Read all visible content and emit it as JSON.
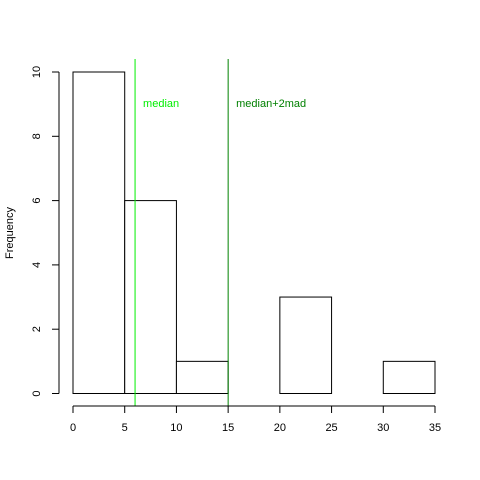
{
  "chart_data": {
    "type": "bar",
    "title": "",
    "xlabel": "",
    "ylabel": "Frequency",
    "bins": [
      {
        "from": 0,
        "to": 5,
        "count": 10
      },
      {
        "from": 5,
        "to": 10,
        "count": 6
      },
      {
        "from": 10,
        "to": 15,
        "count": 1
      },
      {
        "from": 15,
        "to": 20,
        "count": 0
      },
      {
        "from": 20,
        "to": 25,
        "count": 3
      },
      {
        "from": 25,
        "to": 30,
        "count": 0
      },
      {
        "from": 30,
        "to": 35,
        "count": 1
      }
    ],
    "xlim": [
      0,
      35
    ],
    "ylim": [
      0,
      10
    ],
    "x_ticks": [
      "0",
      "5",
      "10",
      "15",
      "20",
      "25",
      "30",
      "35"
    ],
    "y_ticks": [
      "0",
      "2",
      "4",
      "6",
      "8",
      "10"
    ],
    "grid": false,
    "vlines": [
      {
        "label": "median",
        "x": 6,
        "color": "#00ee00"
      },
      {
        "label": "median+2mad",
        "x": 15,
        "color": "#008000"
      }
    ],
    "bar_fill": "#ffffff",
    "bar_stroke": "#000000"
  }
}
